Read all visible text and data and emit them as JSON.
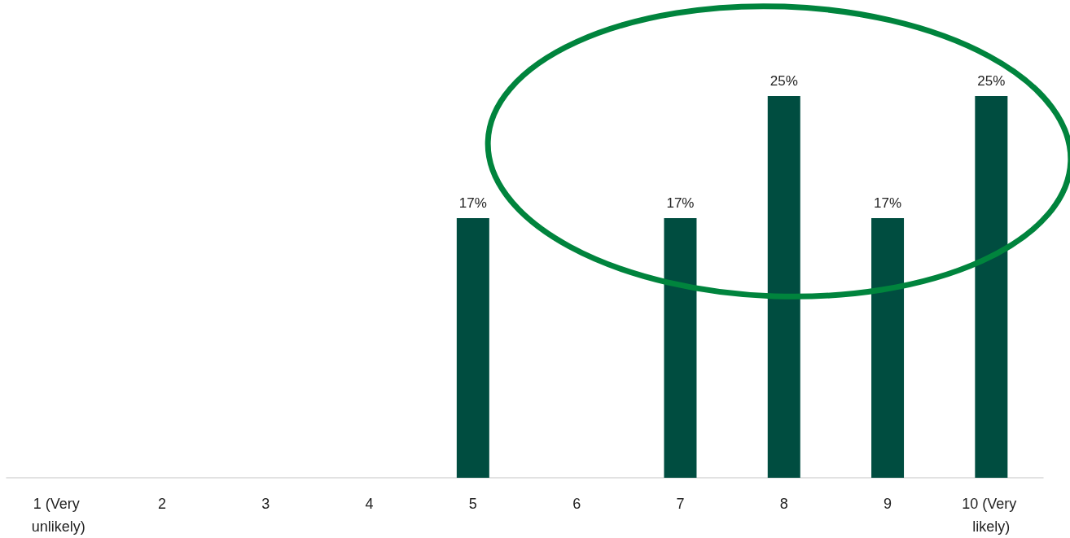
{
  "chart_data": {
    "type": "bar",
    "categories": [
      "1 (Very unlikely)",
      "2",
      "3",
      "4",
      "5",
      "6",
      "7",
      "8",
      "9",
      "10 (Very likely)"
    ],
    "values": [
      0,
      0,
      0,
      0,
      17,
      0,
      17,
      25,
      17,
      25
    ],
    "value_labels": [
      null,
      null,
      null,
      null,
      "17%",
      null,
      "17%",
      "25%",
      "17%",
      "25%"
    ],
    "color": "#004d40"
  }
}
